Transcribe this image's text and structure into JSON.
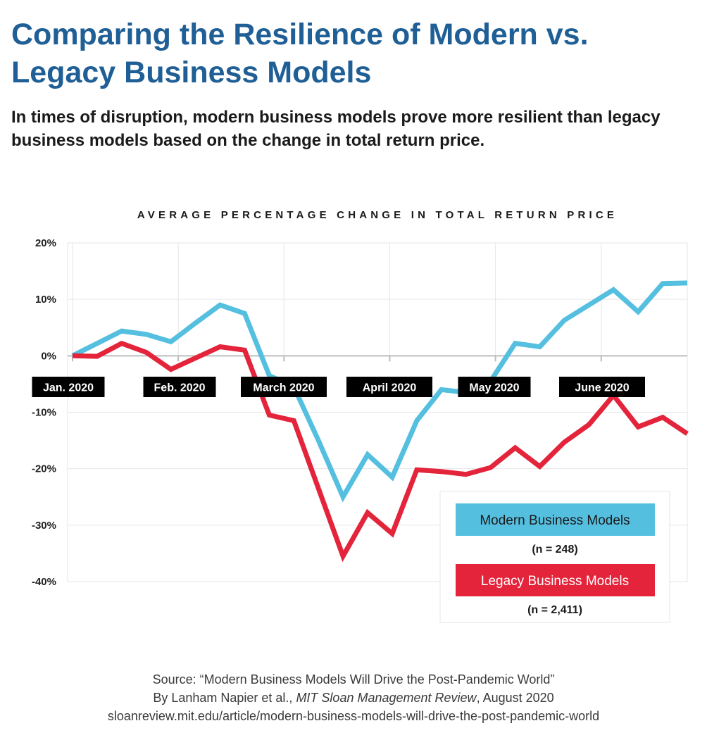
{
  "header": {
    "title": "Comparing the Resilience of Modern vs. Legacy Business Models",
    "subtitle": "In times of disruption, modern business models prove more resilient than legacy business models based on the change in total return price."
  },
  "chart_data": {
    "type": "line",
    "title": "AVERAGE PERCENTAGE CHANGE IN TOTAL RETURN PRICE",
    "xlabel": "",
    "ylabel": "",
    "ylim": [
      -40,
      20
    ],
    "y_ticks": [
      20,
      10,
      0,
      -10,
      -20,
      -30,
      -40
    ],
    "y_tick_labels": [
      "20%",
      "10%",
      "0%",
      "-10%",
      "-20%",
      "-30%",
      "-40%"
    ],
    "x_tick_labels": [
      "Jan. 2020",
      "Feb. 2020",
      "March 2020",
      "April 2020",
      "May 2020",
      "June 2020"
    ],
    "grid": true,
    "legend_position": "bottom-right",
    "series": [
      {
        "name": "Modern Business Models",
        "note": "(n = 248)",
        "color": "#55bfe0",
        "values": [
          0.0,
          2.2,
          4.4,
          3.8,
          2.5,
          5.8,
          9.0,
          7.5,
          -3.5,
          -5.5,
          -15.0,
          -25.0,
          -17.5,
          -21.5,
          -11.5,
          -6.0,
          -6.5,
          -4.5,
          2.2,
          1.6,
          6.3,
          9.0,
          11.7,
          7.8,
          12.8,
          12.9
        ]
      },
      {
        "name": "Legacy Business Models",
        "note": "(n = 2,411)",
        "color": "#e3243b",
        "values": [
          0.0,
          -0.1,
          2.2,
          0.6,
          -2.4,
          -0.4,
          1.6,
          1.0,
          -10.5,
          -11.5,
          -23.5,
          -35.5,
          -27.8,
          -31.5,
          -20.2,
          -20.5,
          -21.0,
          -19.8,
          -16.3,
          -19.6,
          -15.3,
          -12.2,
          -7.0,
          -12.6,
          -10.9,
          -13.8
        ]
      }
    ]
  },
  "source": {
    "line1": "Source: “Modern Business Models Will Drive the Post-Pandemic World”",
    "line2_prefix": "By Lanham Napier et al., ",
    "line2_journal": "MIT Sloan Management Review",
    "line2_suffix": ", August 2020",
    "line3": "sloanreview.mit.edu/article/modern-business-models-will-drive-the-post-pandemic-world"
  }
}
